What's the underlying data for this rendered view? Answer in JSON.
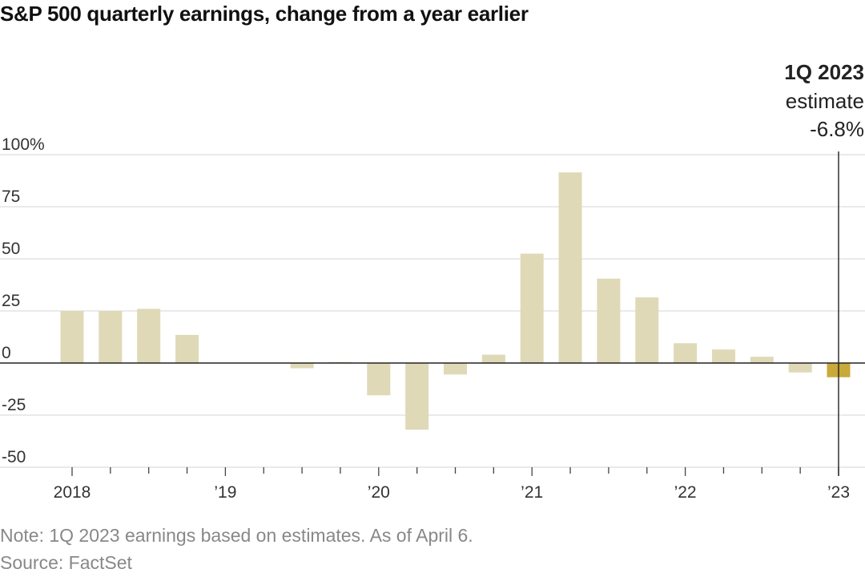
{
  "title": "S&P 500 quarterly earnings, change from a year earlier",
  "note": "Note: 1Q 2023 earnings based on estimates. As of April 6.",
  "source": "Source: FactSet",
  "annotation": {
    "line1": "1Q 2023",
    "line2": "estimate",
    "line3": "-6.8%"
  },
  "colors": {
    "bar": "#dfd9b7",
    "highlight": "#c8a93a",
    "grid": "#dddddd",
    "zero_line": "#222222",
    "annotation_line": "#222222"
  },
  "chart_data": {
    "type": "bar",
    "title": "S&P 500 quarterly earnings, change from a year earlier",
    "xlabel": "",
    "ylabel": "",
    "ylim": [
      -50,
      100
    ],
    "y_ticks": [
      "100%",
      "75",
      "50",
      "25",
      "0",
      "-25",
      "-50"
    ],
    "y_tick_values": [
      100,
      75,
      50,
      25,
      0,
      -25,
      -50
    ],
    "x_tick_labels": [
      "2018",
      "’19",
      "’20",
      "’21",
      "’22",
      "’23"
    ],
    "x_tick_quarters": [
      "1Q 2018",
      "1Q 2019",
      "1Q 2020",
      "1Q 2021",
      "1Q 2022",
      "1Q 2023"
    ],
    "grid": true,
    "categories": [
      "1Q 2018",
      "2Q 2018",
      "3Q 2018",
      "4Q 2018",
      "1Q 2019",
      "2Q 2019",
      "3Q 2019",
      "4Q 2019",
      "1Q 2020",
      "2Q 2020",
      "3Q 2020",
      "4Q 2020",
      "1Q 2021",
      "2Q 2021",
      "3Q 2021",
      "4Q 2021",
      "1Q 2022",
      "2Q 2022",
      "3Q 2022",
      "4Q 2022",
      "1Q 2023"
    ],
    "values": [
      25,
      25,
      26,
      13.5,
      0,
      0,
      -2.5,
      0.5,
      -15.5,
      -32,
      -5.5,
      4,
      52.5,
      91.5,
      40.5,
      31.5,
      9.5,
      6.5,
      3,
      -4.5,
      -6.8
    ],
    "highlight_index": 20
  }
}
